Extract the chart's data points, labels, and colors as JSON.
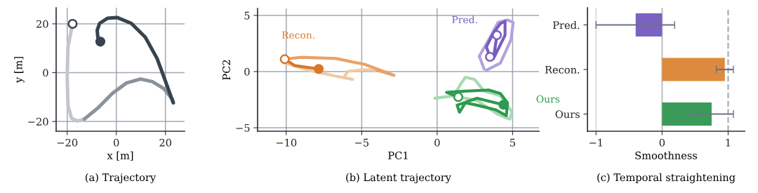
{
  "chart_data": [
    {
      "type": "line",
      "title": "(a) Trajectory",
      "xlabel": "x [m]",
      "ylabel": "y [m]",
      "xlim": [
        -24.5,
        27.8
      ],
      "ylim": [
        -24.0,
        26.6
      ],
      "xticks": [
        {
          "value": -20,
          "label": "−20"
        },
        0,
        20
      ],
      "yticks": [
        {
          "value": -20,
          "label": "−20"
        },
        0,
        20
      ],
      "grid": true,
      "line_style": "solid",
      "marker": "none",
      "series": [
        {
          "color": "#c3c7cc",
          "x": [
            -17.8,
            -19.7,
            -20,
            -19.7,
            -18.3,
            -15.9,
            -13
          ],
          "values": [
            20,
            10.6,
            -1.8,
            -13.3,
            -18.6,
            -19.8,
            -19
          ]
        },
        {
          "color": "#8b929a",
          "x": [
            -13,
            -7.3,
            -1.6,
            4.2,
            9.9,
            14.7,
            19.4,
            22.8,
            23.2
          ],
          "values": [
            -19,
            -14.3,
            -8.5,
            -4.2,
            -2.6,
            -3.7,
            -6.6,
            -10.9,
            -12.3
          ]
        },
        {
          "color": "#37444f",
          "x": [
            23.2,
            21.8,
            19.4,
            16.6,
            11.8,
            6.1,
            0.3,
            -3.5,
            -6.8,
            -7.8,
            -7.5,
            -6.5
          ],
          "values": [
            -12.3,
            -8.5,
            -1.8,
            5.8,
            14.5,
            20.2,
            22.6,
            22.3,
            20.2,
            17.3,
            14.4,
            12.7
          ]
        },
        {
          "type": "scatter",
          "marker": "circle",
          "color": "#37444f",
          "colors": [
            "#ffffff"
          ],
          "x": [
            -17.8
          ],
          "values": [
            20
          ]
        },
        {
          "type": "scatter",
          "marker": "circle",
          "color": "#37444f",
          "colors": [
            "#37444f"
          ],
          "x": [
            -6.5
          ],
          "values": [
            12.7
          ]
        }
      ]
    },
    {
      "type": "line",
      "title": "(b) Latent trajectory",
      "xlabel": "PC1",
      "ylabel": "PC2",
      "xlim": [
        -11.9,
        6.75
      ],
      "ylim": [
        -5.31,
        5.62
      ],
      "xticks": [
        {
          "value": -10,
          "label": "−10"
        },
        {
          "value": -5,
          "label": "−5"
        },
        0,
        5
      ],
      "yticks": [
        {
          "value": -5,
          "label": "−5"
        },
        0,
        5
      ],
      "grid": true,
      "line_style": "solid",
      "marker": "none",
      "series": [
        {
          "color": "#f2c9a3",
          "x": [
            -10.1,
            -8.2,
            -6.36,
            -5.6,
            -6.2,
            -5.9,
            -4.8,
            -4.0
          ],
          "values": [
            0.75,
            0.02,
            -0.5,
            -0.7,
            -0.5,
            0.02,
            0.17,
            0.12
          ]
        },
        {
          "color": "#e9a266",
          "x": [
            -4.0,
            -2.86,
            -4.8,
            -6.7,
            -9.0,
            -10.1
          ],
          "values": [
            0.12,
            -0.33,
            0.64,
            1.16,
            1.27,
            1.1
          ]
        },
        {
          "color": "#d9782a",
          "x": [
            -10.1,
            -9.45,
            -7.85
          ],
          "values": [
            1.1,
            0.54,
            0.23
          ]
        },
        {
          "color": "#b3a3dc",
          "x": [
            3.11,
            2.79,
            3.42,
            4.04,
            4.66,
            5.04,
            4.89,
            4.19,
            3.26
          ],
          "values": [
            0.23,
            1.37,
            2.82,
            4.38,
            4.59,
            4.38,
            2.82,
            0.75,
            0.12
          ]
        },
        {
          "color": "#7a5cc0",
          "x": [
            3.5,
            3.26,
            3.73,
            4.19,
            4.5,
            4.5,
            4.04,
            3.73,
            3.96
          ],
          "values": [
            1.31,
            2.2,
            3.44,
            4.27,
            4.48,
            3.24,
            1.99,
            1.16,
            3.24
          ]
        },
        {
          "color": "#a9d9b3",
          "x": [
            -0.15,
            1.09,
            1.56,
            1.87,
            2.49,
            3.11,
            4.19,
            4.97,
            4.81,
            4.04,
            2.64,
            1.4
          ],
          "values": [
            -2.37,
            -2.16,
            -1.12,
            -0.5,
            -0.71,
            -1.74,
            -2.16,
            -3.61,
            -4.23,
            -3.82,
            -2.57,
            -2.26
          ]
        },
        {
          "color": "#2e9a4e",
          "x": [
            1.4,
            0.62,
            1.87,
            3.42,
            4.19,
            4.66,
            4.58,
            3.88,
            2.64,
            1.87,
            1.48,
            1.32,
            2.64,
            4.39
          ],
          "values": [
            -2.26,
            -1.85,
            -1.74,
            -1.64,
            -1.95,
            -2.78,
            -3.92,
            -3.4,
            -2.99,
            -2.78,
            -3.61,
            -2.99,
            -2.37,
            -2.95
          ]
        },
        {
          "type": "scatter",
          "name": "Recon.",
          "marker": "circle",
          "color": "#d9782a",
          "colors": [
            "#ffffff",
            "#d9782a"
          ],
          "x": [
            -10.1,
            -7.85
          ],
          "values": [
            1.1,
            0.23
          ]
        },
        {
          "type": "scatter",
          "name": "Pred.",
          "marker": "circle",
          "color": "#7a5cc0",
          "colors": [
            "#ffffff",
            "#ffffff"
          ],
          "x": [
            3.96,
            3.5
          ],
          "values": [
            3.24,
            1.31
          ]
        },
        {
          "type": "scatter",
          "name": "Ours",
          "marker": "circle",
          "color": "#2e9a4e",
          "colors": [
            "#ffffff",
            "#2e9a4e"
          ],
          "x": [
            1.4,
            4.39
          ],
          "values": [
            -2.26,
            -2.95
          ]
        }
      ]
    },
    {
      "type": "bar",
      "orientation": "horizontal",
      "title": "(c) Temporal straightening",
      "xlabel": "Smoothness",
      "categories": [
        "Pred.",
        "Recon.",
        "Ours"
      ],
      "values": [
        -0.4,
        0.95,
        0.75
      ],
      "colors": [
        "#7b62c0",
        "#dd8a3e",
        "#3a9a5a"
      ],
      "errors": [
        [
          -1.0,
          0.19
        ],
        [
          0.82,
          1.08
        ],
        [
          0.43,
          1.08
        ]
      ],
      "xlim": [
        -1.13,
        1.25
      ],
      "xticks": [
        {
          "value": -1,
          "label": "−1"
        },
        0,
        1
      ],
      "grid": false,
      "ref_lines": [
        {
          "axis": "x",
          "value": -1,
          "color": "#dfe2ea",
          "line_style": "solid"
        },
        {
          "axis": "x",
          "value": 0,
          "color": "#c4c4c4",
          "line_style": "solid"
        },
        {
          "axis": "x",
          "value": 1,
          "color": "#a9adbb",
          "line_style": "dashed"
        }
      ]
    }
  ]
}
